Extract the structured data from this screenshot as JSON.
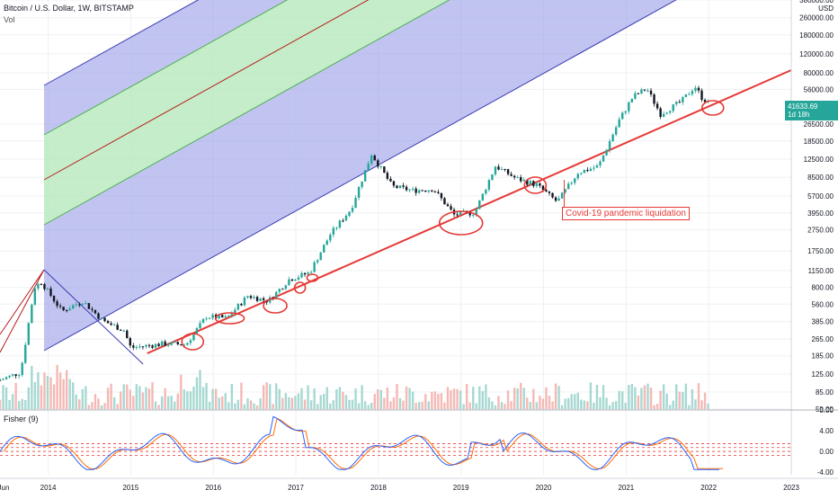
{
  "header": {
    "title": "Bitcoin / U.S. Dollar, 1W, BITSTAMP",
    "volume_label": "Vol"
  },
  "price_axis": {
    "currency": "USD",
    "ticks": [
      "380000.00",
      "260000.00",
      "180000.00",
      "120000.00",
      "80000.00",
      "56000.00",
      "26500.00",
      "18500.00",
      "12500.00",
      "8500.00",
      "5700.00",
      "3950.00",
      "2750.00",
      "1750.00",
      "1150.00",
      "800.00",
      "560.00",
      "385.00",
      "265.00",
      "185.00",
      "125.00",
      "85.00",
      "59.00"
    ]
  },
  "last_price": {
    "value": "41633.69",
    "countdown": "1d 18h"
  },
  "fisher": {
    "label": "Fisher (9)",
    "ticks": [
      "8.00",
      "4.00",
      "0.00",
      "-4.00"
    ]
  },
  "time_axis": {
    "ticks": [
      "Jun",
      "2014",
      "2015",
      "2016",
      "2017",
      "2018",
      "2019",
      "2020",
      "2021",
      "2022",
      "2023"
    ]
  },
  "annotation": {
    "text": "Covid-19 pandemic liquidation"
  },
  "colors": {
    "up": "#26a69a",
    "down": "#131722",
    "outer_fill": "#9fa5e8",
    "inner_fill": "#b7e8bd",
    "outer_line": "#3a3ab5",
    "inner_line": "#4caf50",
    "mid_line": "#b71c1c",
    "support": "#e53935",
    "fisher_main": "#2962ff",
    "fisher_signal": "#ff6d00",
    "fisher_levels": "#e53935"
  },
  "chart_data": {
    "type": "candlestick",
    "title": "Bitcoin / U.S. Dollar, 1W, BITSTAMP",
    "y_scale": "log",
    "ylim": [
      59,
      380000
    ],
    "xlim": [
      "2013-06",
      "2023-01"
    ],
    "price_series": [
      {
        "date": "2013-06",
        "close": 110
      },
      {
        "date": "2013-09",
        "close": 130
      },
      {
        "date": "2013-11",
        "close": 800
      },
      {
        "date": "2013-12",
        "close": 900
      },
      {
        "date": "2014-03",
        "close": 480
      },
      {
        "date": "2014-06",
        "close": 600
      },
      {
        "date": "2014-09",
        "close": 390
      },
      {
        "date": "2014-12",
        "close": 320
      },
      {
        "date": "2015-01",
        "close": 220
      },
      {
        "date": "2015-06",
        "close": 240
      },
      {
        "date": "2015-09",
        "close": 235
      },
      {
        "date": "2015-12",
        "close": 430
      },
      {
        "date": "2016-03",
        "close": 415
      },
      {
        "date": "2016-06",
        "close": 670
      },
      {
        "date": "2016-09",
        "close": 600
      },
      {
        "date": "2016-12",
        "close": 950
      },
      {
        "date": "2017-03",
        "close": 1100
      },
      {
        "date": "2017-06",
        "close": 2500
      },
      {
        "date": "2017-09",
        "close": 4300
      },
      {
        "date": "2017-12",
        "close": 14000
      },
      {
        "date": "2018-03",
        "close": 7000
      },
      {
        "date": "2018-06",
        "close": 6400
      },
      {
        "date": "2018-09",
        "close": 6600
      },
      {
        "date": "2018-12",
        "close": 3800
      },
      {
        "date": "2019-03",
        "close": 4000
      },
      {
        "date": "2019-06",
        "close": 10800
      },
      {
        "date": "2019-09",
        "close": 8300
      },
      {
        "date": "2019-12",
        "close": 7200
      },
      {
        "date": "2020-03",
        "close": 5000
      },
      {
        "date": "2020-06",
        "close": 9400
      },
      {
        "date": "2020-09",
        "close": 10800
      },
      {
        "date": "2020-12",
        "close": 29000
      },
      {
        "date": "2021-02",
        "close": 48000
      },
      {
        "date": "2021-04",
        "close": 57000
      },
      {
        "date": "2021-06",
        "close": 33000
      },
      {
        "date": "2021-09",
        "close": 43000
      },
      {
        "date": "2021-11",
        "close": 60000
      },
      {
        "date": "2021-12",
        "close": 47000
      },
      {
        "date": "2022-01",
        "close": 41633.69
      }
    ],
    "volume": "shown as histogram (values not labeled)",
    "fisher_transform": {
      "period": 9,
      "ylim": [
        -4.5,
        8
      ],
      "level_lines": [
        1.5,
        0.75,
        0,
        -0.75
      ]
    },
    "channels": {
      "description": "log-linear regression channel with outer (blue) and inner (green) bands, center line (dark red), lower support line (red)"
    }
  }
}
